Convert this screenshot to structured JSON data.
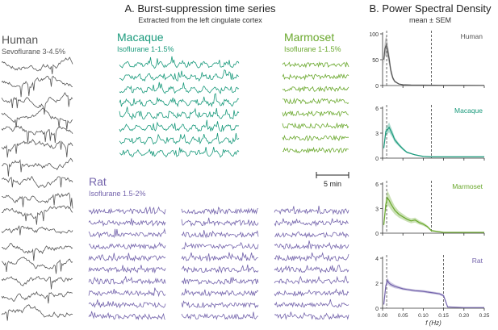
{
  "panel_a": {
    "title": "A. Burst-suppression time series",
    "subtitle": "Extracted from the left cingulate cortex",
    "scale_bar_label": "5 min"
  },
  "panel_b": {
    "title": "B. Power Spectral Density",
    "subtitle": "mean ± SEM"
  },
  "species": {
    "human": {
      "name": "Human",
      "anesthesia": "Sevoflurane 3-4.5%",
      "color": "#555555"
    },
    "macaque": {
      "name": "Macaque",
      "anesthesia": "Isoflurane 1-1.5%",
      "color": "#1a9a7c"
    },
    "marmoset": {
      "name": "Marmoset",
      "anesthesia": "Isoflurane 1-1.5%",
      "color": "#6aa82d"
    },
    "rat": {
      "name": "Rat",
      "anesthesia": "Isoflurane 1.5-2%",
      "color": "#7464ac"
    }
  },
  "chart_data": {
    "type": "line",
    "xlabel": "f (Hz)",
    "x_ticks": [
      "0.00",
      "0.05",
      "0.10",
      "0.15",
      "0.20",
      "0.25"
    ],
    "xlim": [
      0,
      0.25
    ],
    "panels": [
      {
        "name": "Human",
        "ylim": [
          0,
          100
        ],
        "y_ticks": [
          "0",
          "50",
          "100"
        ],
        "vlines": [
          0.01,
          0.12
        ],
        "x": [
          0.003,
          0.006,
          0.009,
          0.012,
          0.016,
          0.02,
          0.025,
          0.03,
          0.04,
          0.05,
          0.07,
          0.1,
          0.15,
          0.2,
          0.25
        ],
        "mean": [
          50,
          72,
          78,
          70,
          52,
          30,
          15,
          8,
          3,
          1.5,
          1,
          0.8,
          0.5,
          0.4,
          0.3
        ],
        "sem": [
          12,
          16,
          18,
          15,
          12,
          8,
          4,
          2,
          1,
          0.5,
          0.3,
          0.2,
          0.2,
          0.1,
          0.1
        ]
      },
      {
        "name": "Macaque",
        "ylim": [
          0,
          6
        ],
        "y_ticks": [
          "0",
          "3",
          "6"
        ],
        "vlines": [
          0.01,
          0.12
        ],
        "x": [
          0.003,
          0.008,
          0.012,
          0.016,
          0.02,
          0.025,
          0.03,
          0.04,
          0.05,
          0.06,
          0.08,
          0.1,
          0.12,
          0.15,
          0.2,
          0.25
        ],
        "mean": [
          1.2,
          3.2,
          3.4,
          3.7,
          3.3,
          2.8,
          2.2,
          1.6,
          1.1,
          0.7,
          0.4,
          0.2,
          0.15,
          0.15,
          0.15,
          0.15
        ],
        "sem": [
          0.3,
          0.5,
          0.5,
          0.6,
          0.5,
          0.4,
          0.3,
          0.2,
          0.15,
          0.1,
          0.05,
          0.05,
          0.03,
          0.03,
          0.03,
          0.03
        ]
      },
      {
        "name": "Marmoset",
        "ylim": [
          0,
          6
        ],
        "y_ticks": [
          "0",
          "3",
          "6"
        ],
        "vlines": [
          0.01,
          0.12
        ],
        "x": [
          0.003,
          0.008,
          0.012,
          0.016,
          0.02,
          0.025,
          0.03,
          0.04,
          0.05,
          0.06,
          0.07,
          0.08,
          0.09,
          0.1,
          0.11,
          0.12,
          0.15,
          0.2,
          0.25
        ],
        "mean": [
          1.0,
          3.5,
          4.3,
          4.0,
          3.6,
          3.2,
          2.8,
          2.3,
          2.0,
          1.7,
          1.5,
          1.6,
          1.3,
          1.1,
          0.8,
          0.3,
          0.1,
          0.1,
          0.1
        ],
        "sem": [
          0.4,
          0.8,
          0.9,
          0.8,
          0.7,
          0.6,
          0.5,
          0.4,
          0.35,
          0.3,
          0.3,
          0.3,
          0.25,
          0.2,
          0.15,
          0.1,
          0.05,
          0.05,
          0.05
        ]
      },
      {
        "name": "Rat",
        "ylim": [
          0,
          4
        ],
        "y_ticks": [
          "0",
          "2",
          "4"
        ],
        "vlines": [
          0.01,
          0.15
        ],
        "x": [
          0.003,
          0.008,
          0.012,
          0.016,
          0.02,
          0.03,
          0.04,
          0.05,
          0.06,
          0.07,
          0.08,
          0.09,
          0.1,
          0.11,
          0.12,
          0.13,
          0.14,
          0.15,
          0.16,
          0.2,
          0.25
        ],
        "mean": [
          0.3,
          1.8,
          2.2,
          2.0,
          1.9,
          1.75,
          1.65,
          1.55,
          1.5,
          1.45,
          1.4,
          1.38,
          1.35,
          1.3,
          1.25,
          1.2,
          1.15,
          1.0,
          0.1,
          0.05,
          0.05
        ],
        "sem": [
          0.1,
          0.2,
          0.25,
          0.2,
          0.18,
          0.15,
          0.12,
          0.1,
          0.1,
          0.1,
          0.1,
          0.1,
          0.1,
          0.1,
          0.1,
          0.1,
          0.1,
          0.1,
          0.05,
          0.02,
          0.02
        ]
      }
    ]
  }
}
